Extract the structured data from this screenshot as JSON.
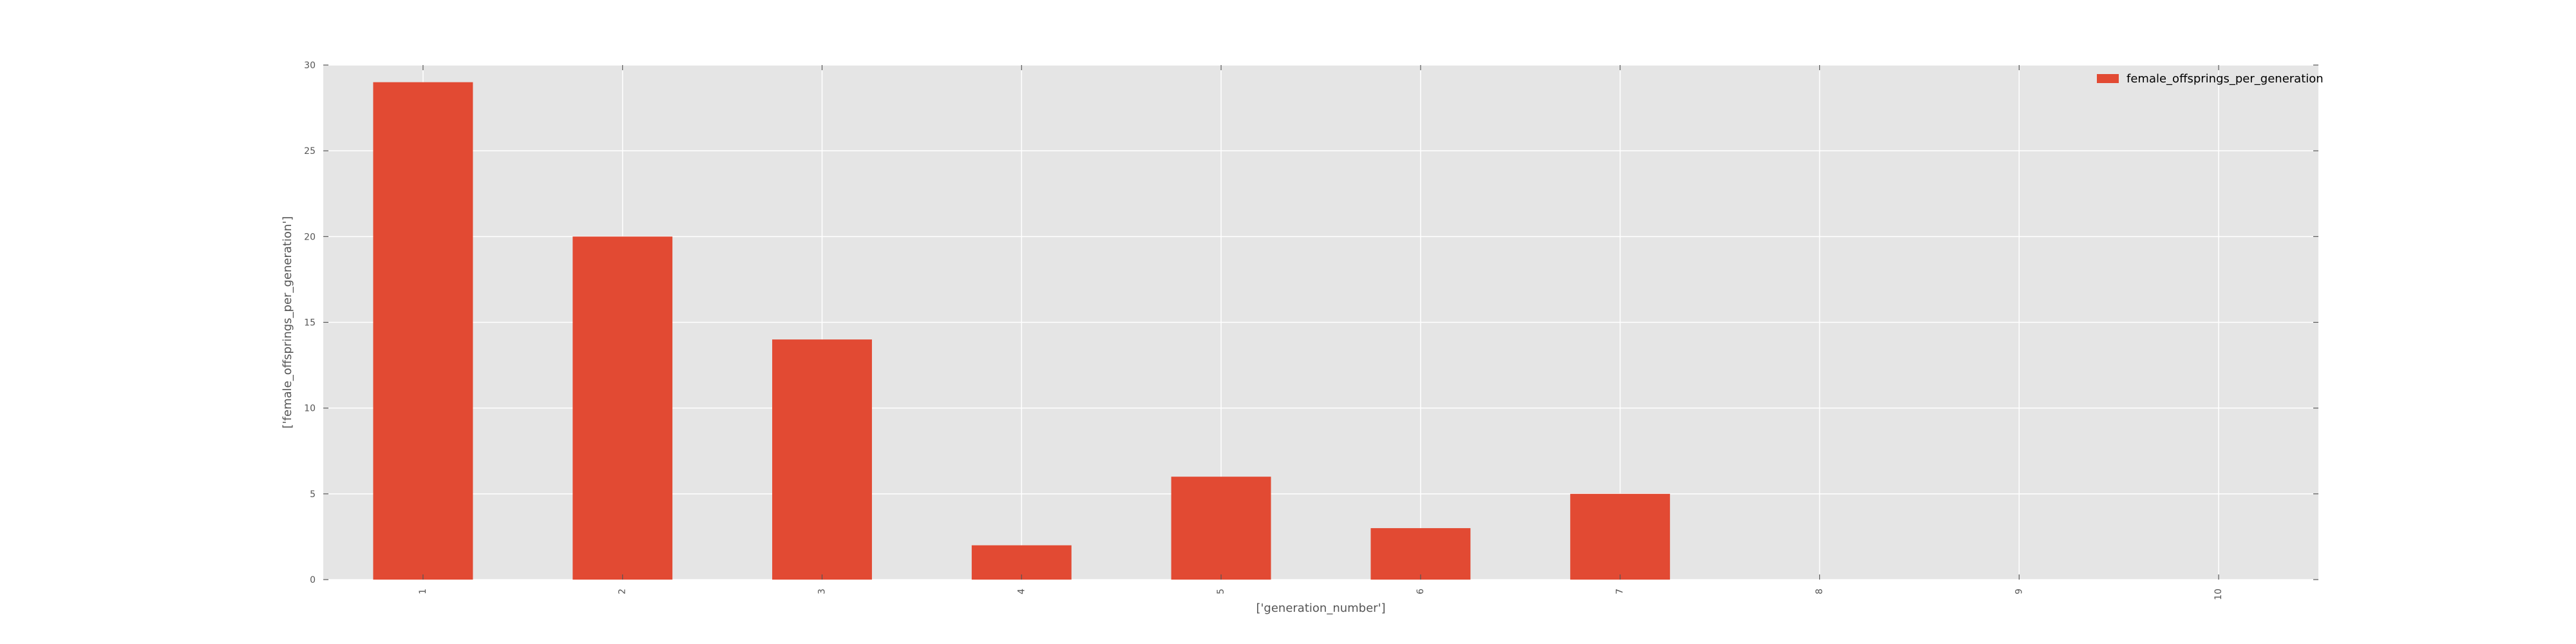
{
  "chart_data": {
    "type": "bar",
    "categories": [
      "1",
      "2",
      "3",
      "4",
      "5",
      "6",
      "7",
      "8",
      "9",
      "10"
    ],
    "series": [
      {
        "name": "female_offsprings_per_generation",
        "values": [
          29,
          20,
          14,
          2,
          6,
          3,
          5,
          0,
          0,
          0
        ],
        "color": "#e24a33"
      }
    ],
    "xlabel": "['generation_number']",
    "ylabel": "['female_offsprings_per_generation']",
    "ylim": [
      0,
      30
    ],
    "yticks": [
      "0",
      "5",
      "10",
      "15",
      "20",
      "25",
      "30"
    ],
    "grid": true,
    "legend_position": "top-right",
    "background_color": "#e5e5e5",
    "grid_color": "#ffffff"
  }
}
